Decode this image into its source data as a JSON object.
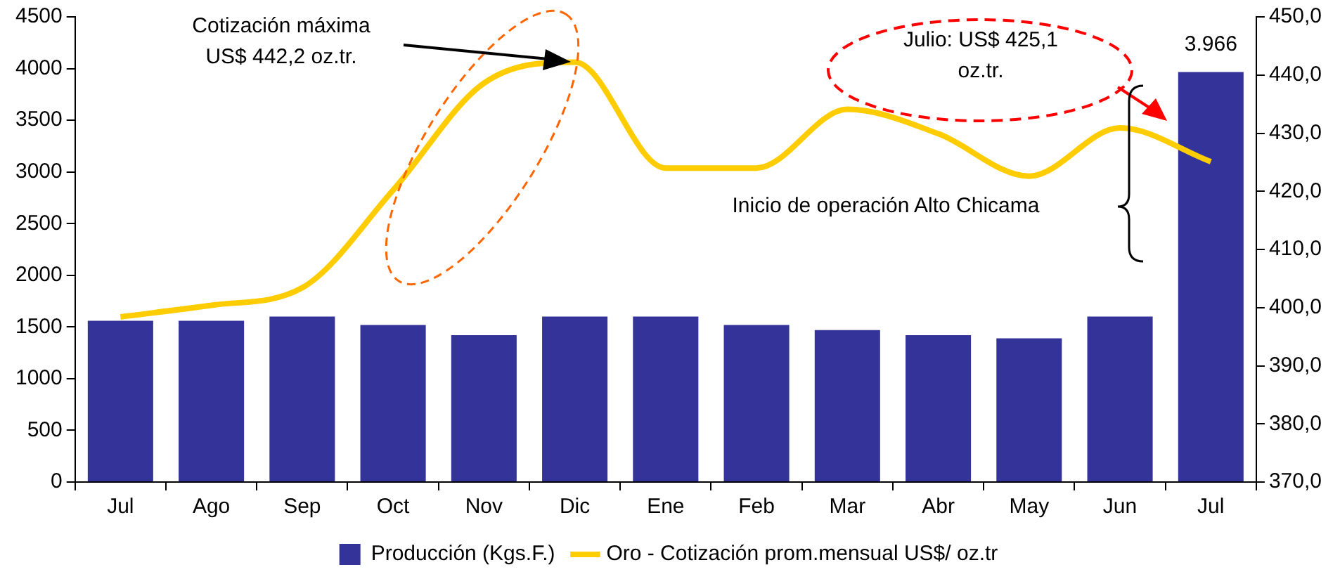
{
  "chart_data": {
    "type": "bar",
    "categories": [
      "Jul",
      "Ago",
      "Sep",
      "Oct",
      "Nov",
      "Dic",
      "Ene",
      "Feb",
      "Mar",
      "Abr",
      "May",
      "Jun",
      "Jul"
    ],
    "series": [
      {
        "name": "Producción (Kgs.F.)",
        "color": "#333399",
        "values": [
          1560,
          1560,
          1600,
          1520,
          1420,
          1600,
          1600,
          1520,
          1470,
          1420,
          1390,
          1600,
          3966
        ],
        "value_labels": [
          null,
          null,
          null,
          null,
          null,
          null,
          null,
          null,
          null,
          null,
          null,
          null,
          "3.966"
        ]
      },
      {
        "name": "Oro - Cotización prom.mensual US$/ oz.tr",
        "type": "line",
        "axis": "y2",
        "color": "#ffcc00",
        "values": [
          398.4,
          400.4,
          403.4,
          420.2,
          438.6,
          442.2,
          424,
          424,
          434.1,
          429.9,
          422.6,
          430.9,
          425.1
        ]
      }
    ],
    "ylim": [
      0,
      4500
    ],
    "yticks": [
      0,
      500,
      1000,
      1500,
      2000,
      2500,
      3000,
      3500,
      4000,
      4500
    ],
    "y2lim": [
      370,
      450
    ],
    "y2ticks": [
      {
        "value": 370,
        "label": "370,0"
      },
      {
        "value": 380,
        "label": "380,0"
      },
      {
        "value": 390,
        "label": "390,0"
      },
      {
        "value": 400,
        "label": "400,0"
      },
      {
        "value": 410,
        "label": "410,0"
      },
      {
        "value": 420,
        "label": "420,0"
      },
      {
        "value": 430,
        "label": "430,0"
      },
      {
        "value": 440,
        "label": "440,0"
      },
      {
        "value": 450,
        "label": "450,0"
      }
    ],
    "grid": false,
    "legend": "bottom",
    "marker": "none",
    "line_style": "solid",
    "annotations": [
      "Cotización máxima US$ 442,2 oz.tr.",
      "Julio: US$ 425,1 oz.tr.",
      "Inicio de operación Alto Chicama"
    ]
  }
}
